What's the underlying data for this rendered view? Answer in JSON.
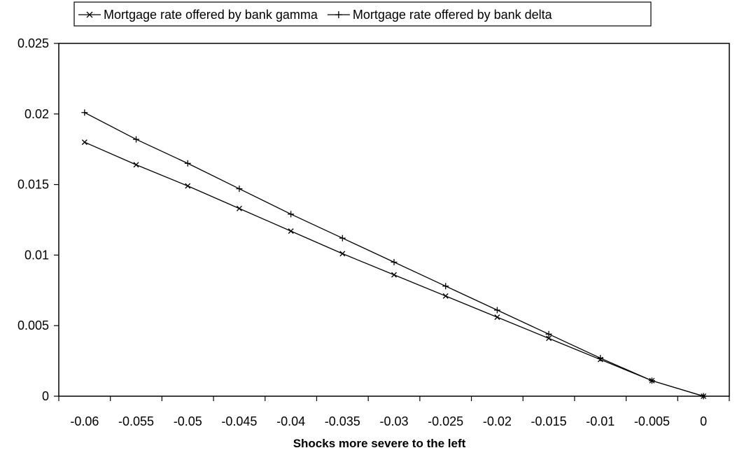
{
  "chart_data": {
    "type": "line",
    "title": "",
    "xlabel": "Shocks more severe to the left",
    "ylabel": "",
    "xlim": [
      -0.0625,
      0.0025
    ],
    "ylim": [
      0,
      0.025
    ],
    "x_ticks": [
      -0.06,
      -0.055,
      -0.05,
      -0.045,
      -0.04,
      -0.035,
      -0.03,
      -0.025,
      -0.02,
      -0.015,
      -0.01,
      -0.005,
      0
    ],
    "x_tick_labels": [
      "-0.06",
      "-0.055",
      "-0.05",
      "-0.045",
      "-0.04",
      "-0.035",
      "-0.03",
      "-0.025",
      "-0.02",
      "-0.015",
      "-0.01",
      "-0.005",
      "0"
    ],
    "y_ticks": [
      0,
      0.005,
      0.01,
      0.015,
      0.02,
      0.025
    ],
    "y_tick_labels": [
      "0",
      "0.005",
      "0.01",
      "0.015",
      "0.02",
      "0.025"
    ],
    "grid": false,
    "legend_position": "top",
    "x": [
      -0.06,
      -0.055,
      -0.05,
      -0.045,
      -0.04,
      -0.035,
      -0.03,
      -0.025,
      -0.02,
      -0.015,
      -0.01,
      -0.005,
      0
    ],
    "series": [
      {
        "name": "Mortgage rate offered by bank gamma",
        "marker": "x",
        "color": "#000000",
        "values": [
          0.018,
          0.0164,
          0.0149,
          0.0133,
          0.0117,
          0.0101,
          0.0086,
          0.0071,
          0.0056,
          0.0041,
          0.0026,
          0.0011,
          0
        ]
      },
      {
        "name": "Mortgage rate offered by bank delta",
        "marker": "+",
        "color": "#000000",
        "values": [
          0.0201,
          0.0182,
          0.0165,
          0.0147,
          0.0129,
          0.0112,
          0.0095,
          0.0078,
          0.0061,
          0.0044,
          0.0027,
          0.0011,
          0
        ]
      }
    ]
  }
}
